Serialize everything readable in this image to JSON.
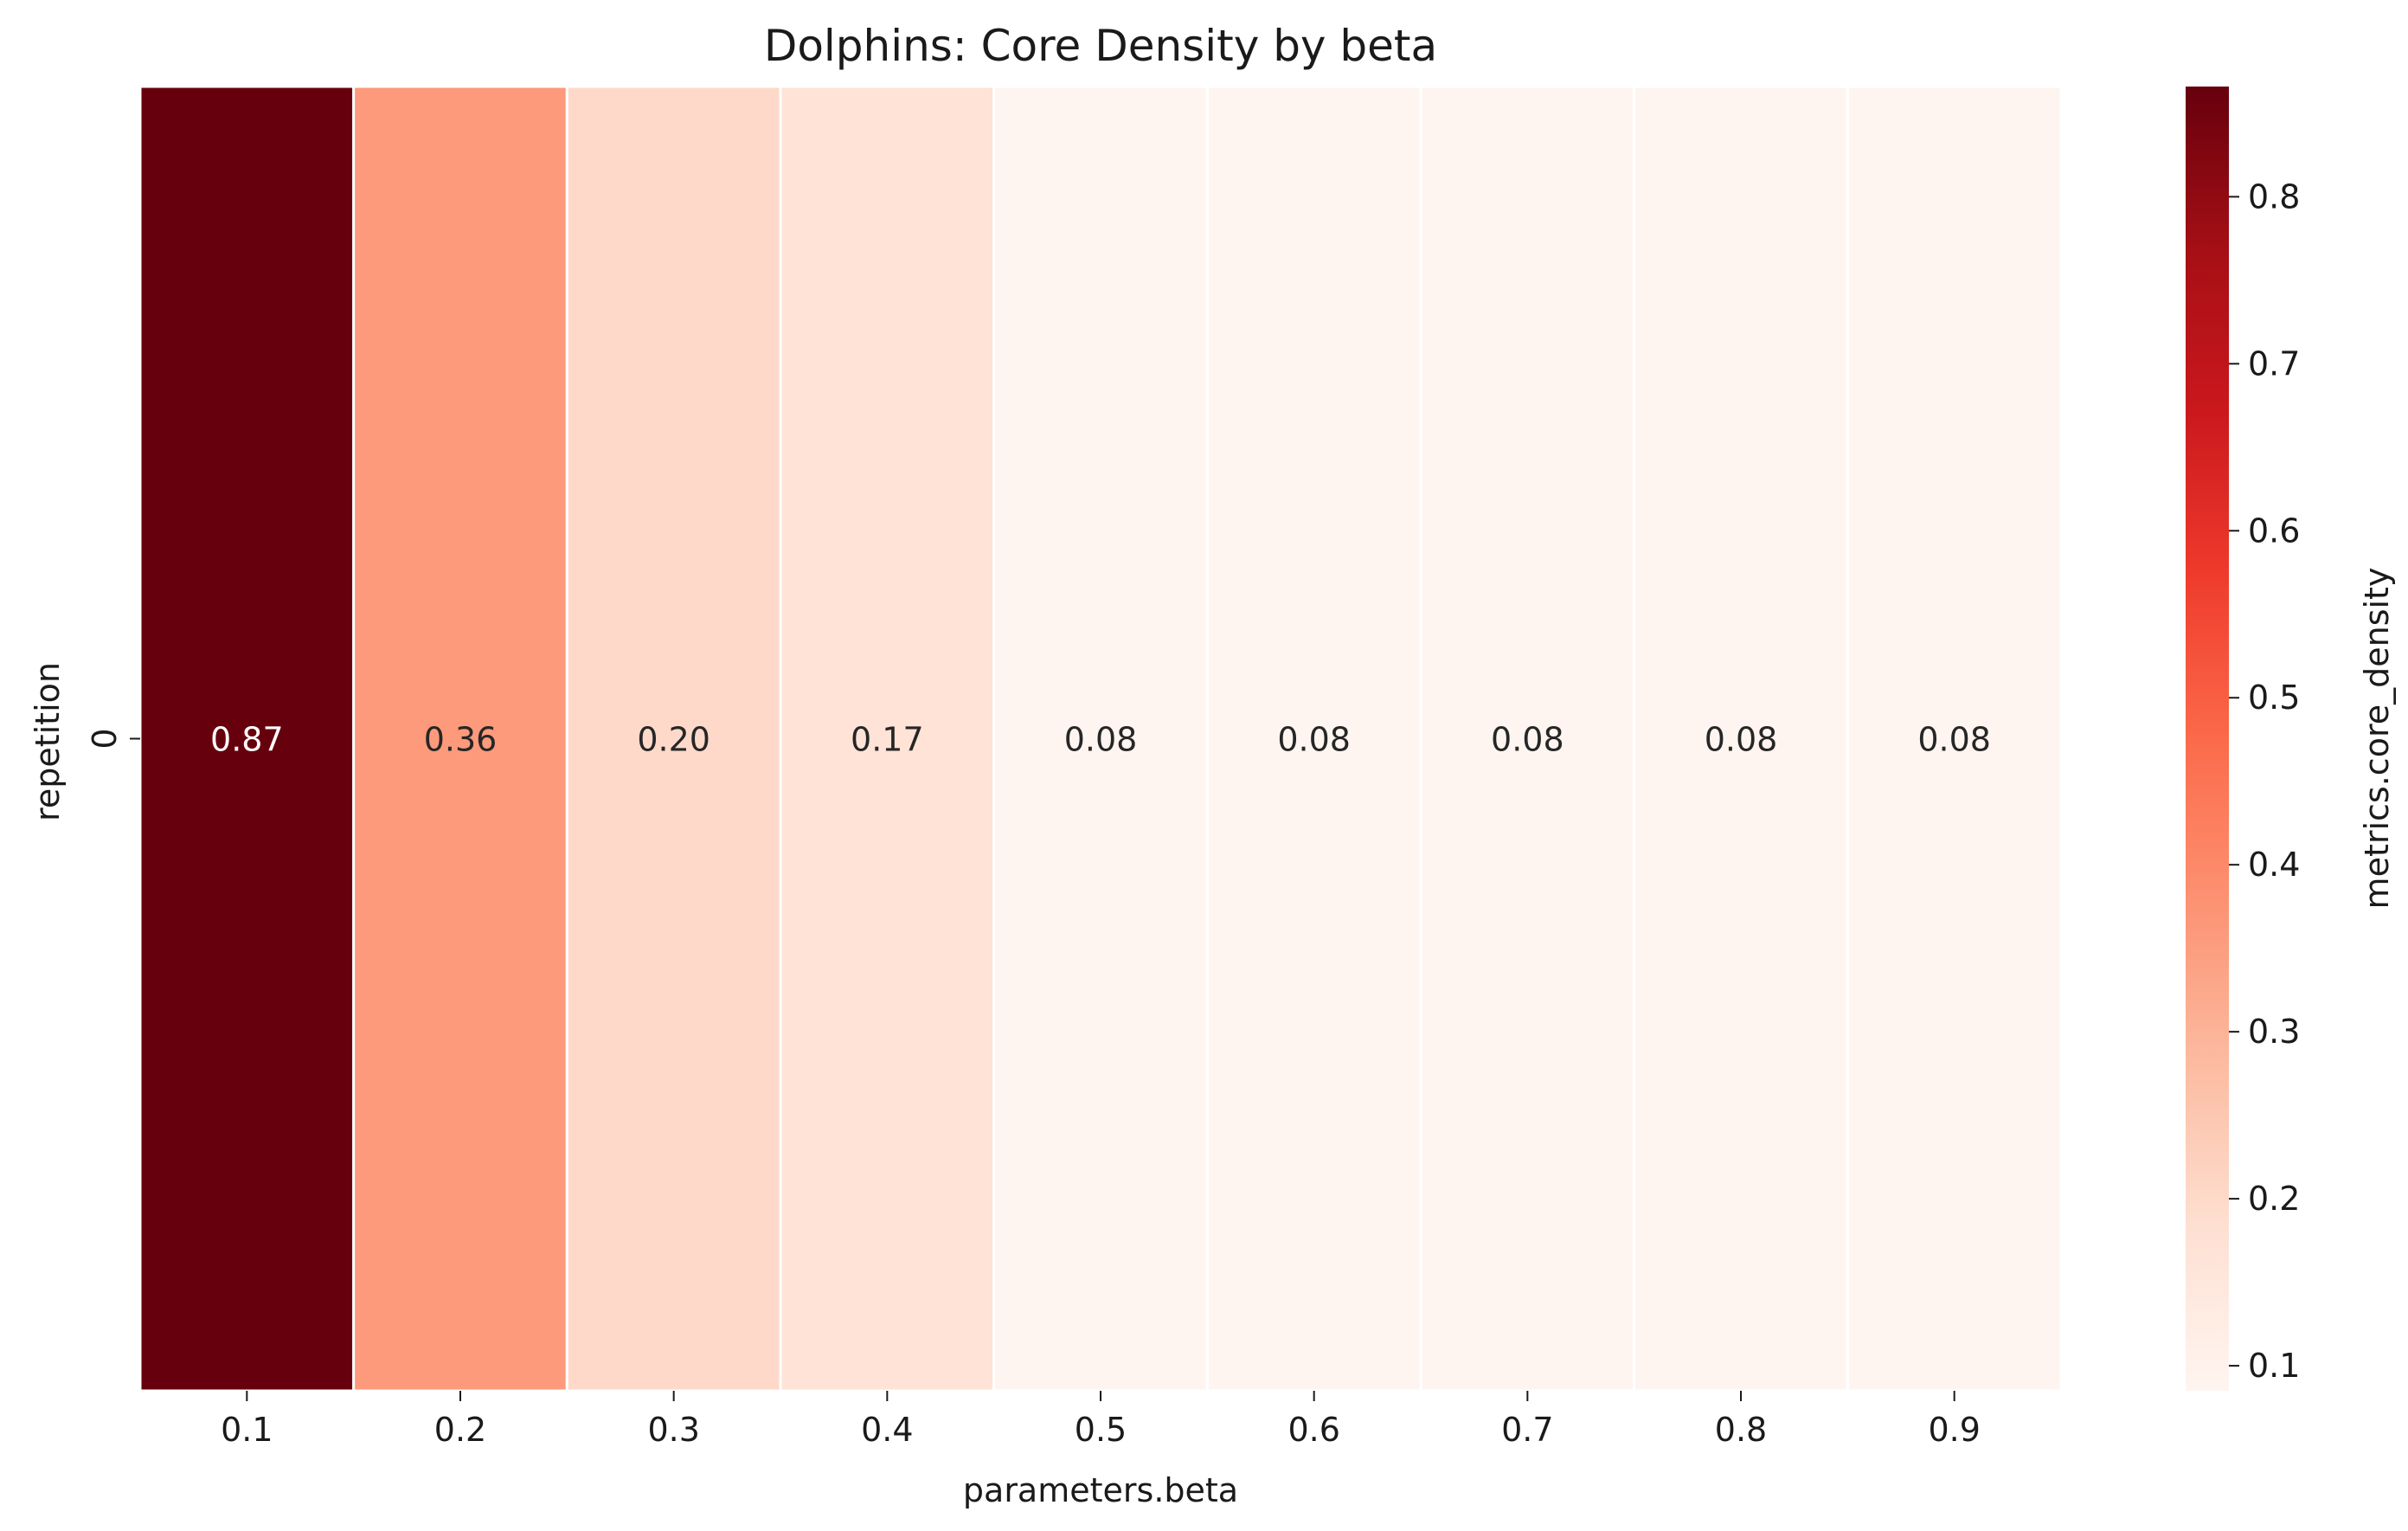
{
  "chart_data": {
    "type": "heatmap",
    "title": "Dolphins: Core Density by beta",
    "xlabel": "parameters.beta",
    "ylabel": "repetition",
    "x_categories": [
      "0.1",
      "0.2",
      "0.3",
      "0.4",
      "0.5",
      "0.6",
      "0.7",
      "0.8",
      "0.9"
    ],
    "y_categories": [
      "0"
    ],
    "values": [
      [
        0.87,
        0.36,
        0.2,
        0.17,
        0.08,
        0.08,
        0.08,
        0.08,
        0.08
      ]
    ],
    "annotations": [
      [
        "0.87",
        "0.36",
        "0.20",
        "0.17",
        "0.08",
        "0.08",
        "0.08",
        "0.08",
        "0.08"
      ]
    ],
    "colorbar": {
      "label": "metrics.core_density",
      "range": [
        0.085,
        0.866
      ],
      "ticks": [
        0.1,
        0.2,
        0.3,
        0.4,
        0.5,
        0.6,
        0.7,
        0.8
      ],
      "tick_labels": [
        "0.1",
        "0.2",
        "0.3",
        "0.4",
        "0.5",
        "0.6",
        "0.7",
        "0.8"
      ],
      "colormap": "Reds",
      "colormap_stops": [
        "#fff5f0",
        "#fee0d2",
        "#fcbba1",
        "#fc9272",
        "#fb6a4a",
        "#ef3b2c",
        "#cb181d",
        "#a50f15",
        "#67000d"
      ]
    },
    "cell_border_color": "#ffffff",
    "grid": false
  }
}
